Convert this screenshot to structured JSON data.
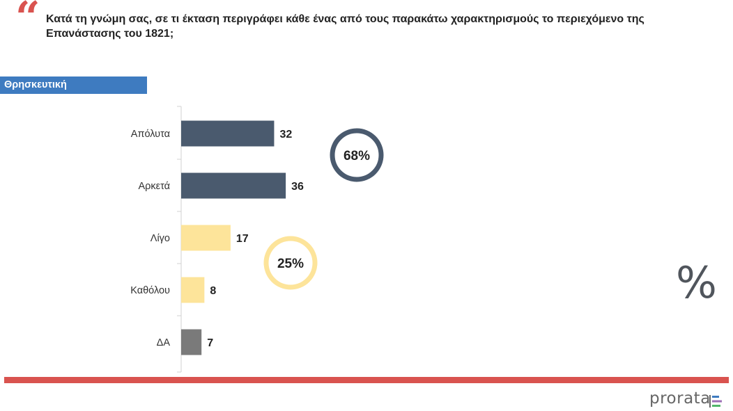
{
  "question": "Κατά τη γνώμη σας, σε τι έκταση περιγράφει κάθε ένας από τους παρακάτω χαρακτηρισμούς το περιεχόμενο της Επανάστασης του 1821;",
  "quote_mark": "“",
  "section_label": "Θρησκευτική",
  "percent_symbol": "%",
  "logo_text": "prorata",
  "colors": {
    "accent_red": "#d9534f",
    "label_blue": "#3e7bc0",
    "bar_dark": "#4a5a6e",
    "bar_yellow": "#fde49a",
    "bar_gray": "#7a7a7a"
  },
  "chart_data": {
    "type": "bar",
    "orientation": "horizontal",
    "categories": [
      "Απόλυτα",
      "Αρκετά",
      "Λίγο",
      "Καθόλου",
      "ΔΑ"
    ],
    "values": [
      32,
      36,
      17,
      8,
      7
    ],
    "bar_colors": [
      "#4a5a6e",
      "#4a5a6e",
      "#fde49a",
      "#fde49a",
      "#7a7a7a"
    ],
    "groups": [
      {
        "label": "68%",
        "value": 68,
        "color": "#4a5a6e"
      },
      {
        "label": "25%",
        "value": 25,
        "color": "#fde49a"
      }
    ],
    "xlim": [
      0,
      100
    ],
    "grid": false
  }
}
